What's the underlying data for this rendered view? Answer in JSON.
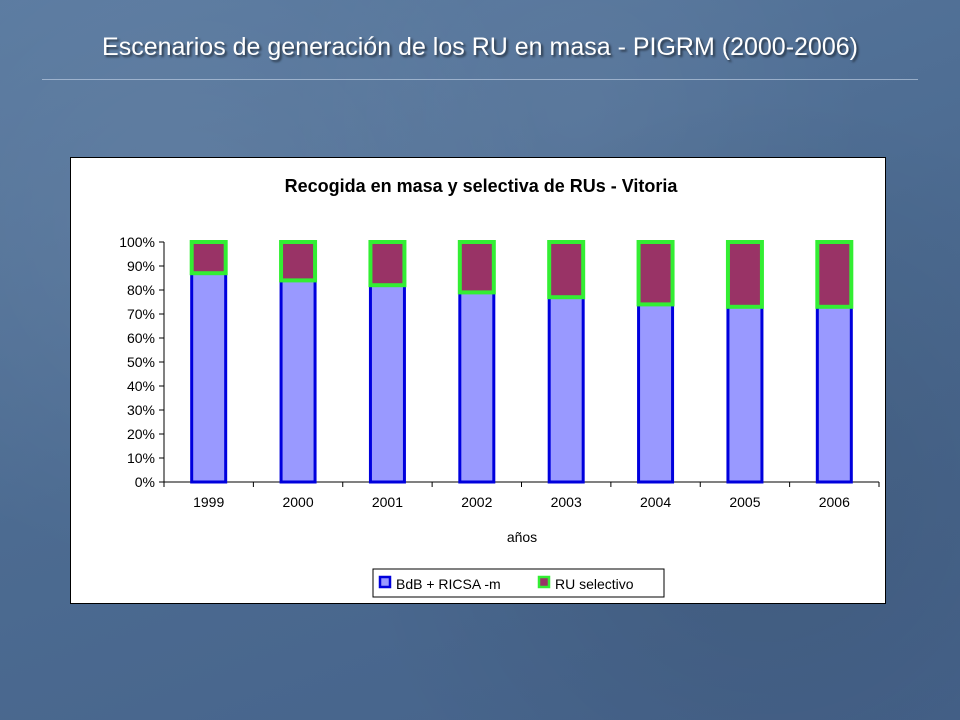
{
  "slide": {
    "title": "Escenarios de generación de los RU en masa - PIGRM (2000-2006)"
  },
  "chart_data": {
    "type": "bar",
    "stacked": true,
    "normalized_percent": true,
    "title": "Recogida en masa y selectiva de RUs - Vitoria",
    "xlabel": "años",
    "ylabel": "",
    "categories": [
      "1999",
      "2000",
      "2001",
      "2002",
      "2003",
      "2004",
      "2005",
      "2006"
    ],
    "series": [
      {
        "name": "BdB + RICSA -m",
        "values": [
          87,
          84,
          82,
          79,
          77,
          74,
          73,
          73
        ],
        "fill": "#9999ff",
        "stroke": "#0000dd"
      },
      {
        "name": "RU selectivo",
        "values": [
          13,
          16,
          18,
          21,
          23,
          26,
          27,
          27
        ],
        "fill": "#993366",
        "stroke": "#33ee33"
      }
    ],
    "yticks": [
      "0%",
      "10%",
      "20%",
      "30%",
      "40%",
      "50%",
      "60%",
      "70%",
      "80%",
      "90%",
      "100%"
    ],
    "ylim": [
      0,
      100
    ],
    "grid": false,
    "legend_position": "bottom-right"
  }
}
